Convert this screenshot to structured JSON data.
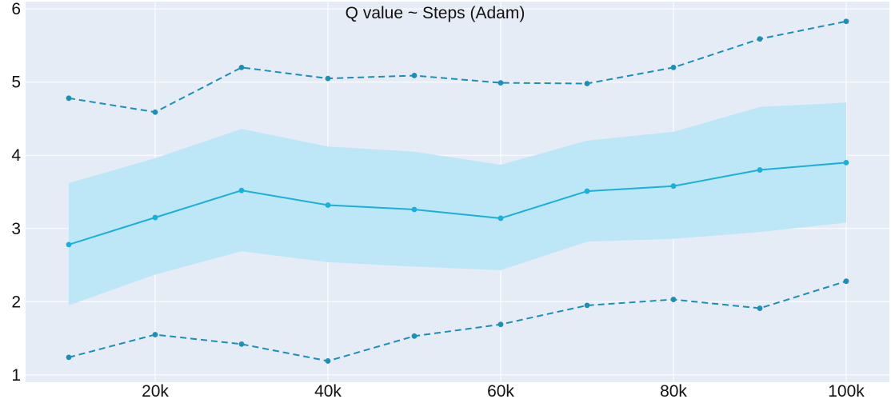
{
  "chart_data": {
    "type": "line",
    "title": "Q value ~ Steps (Adam)",
    "xlabel": "",
    "ylabel": "",
    "x": [
      10000,
      20000,
      30000,
      40000,
      50000,
      60000,
      70000,
      80000,
      90000,
      100000
    ],
    "xlim": [
      5000,
      105000
    ],
    "ylim": [
      0.9,
      6.1
    ],
    "x_ticks": [
      20000,
      40000,
      60000,
      80000,
      100000
    ],
    "x_tick_labels": [
      "20k",
      "40k",
      "60k",
      "80k",
      "100k"
    ],
    "y_ticks": [
      1,
      2,
      3,
      4,
      5,
      6
    ],
    "y_tick_labels": [
      "1",
      "2",
      "3",
      "4",
      "5",
      "6"
    ],
    "grid": true,
    "legend": "none",
    "series": [
      {
        "role": "mean",
        "values": [
          2.78,
          3.15,
          3.52,
          3.32,
          3.26,
          3.14,
          3.51,
          3.58,
          3.8,
          3.9
        ],
        "color": "#1ab0d8",
        "style": "solid"
      },
      {
        "role": "max",
        "values": [
          4.78,
          4.59,
          5.2,
          5.05,
          5.09,
          4.99,
          4.98,
          5.2,
          5.59,
          5.83
        ],
        "color": "#1b8fb4",
        "style": "dashed"
      },
      {
        "role": "min",
        "values": [
          1.24,
          1.55,
          1.42,
          1.19,
          1.53,
          1.69,
          1.95,
          2.03,
          1.91,
          2.28
        ],
        "color": "#1b8fb4",
        "style": "dashed"
      }
    ],
    "band": {
      "upper": [
        3.62,
        3.96,
        4.36,
        4.12,
        4.05,
        3.87,
        4.2,
        4.32,
        4.66,
        4.72
      ],
      "lower": [
        1.95,
        2.37,
        2.69,
        2.54,
        2.48,
        2.43,
        2.82,
        2.86,
        2.95,
        3.08
      ],
      "color": "#bde6f7"
    },
    "colors": {
      "plot_background": "#e5ecf6",
      "grid": "#ffffff"
    }
  }
}
